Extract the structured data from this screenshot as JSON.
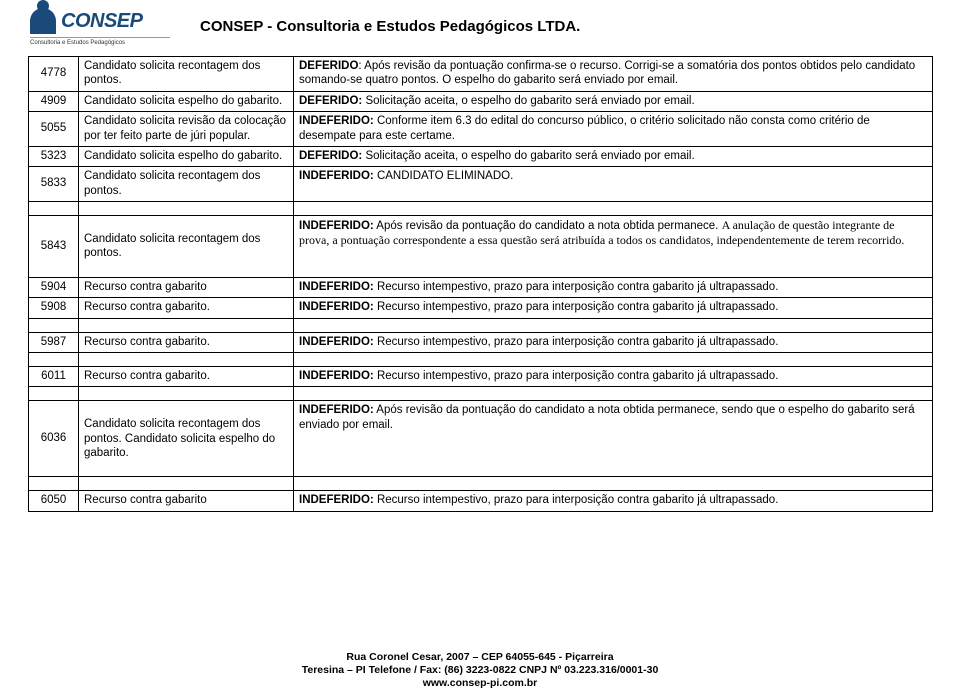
{
  "header": {
    "logo_name": "CONSEP",
    "logo_sub": "Consultoria e Estudos Pedagógicos",
    "title": "CONSEP -    Consultoria e Estudos Pedagógicos LTDA."
  },
  "rows": [
    {
      "id": "4778",
      "req": "Candidato solicita recontagem dos pontos.",
      "dec_bold": "DEFERIDO",
      "dec_rest": ": Após revisão da pontuação confirma-se o recurso. Corrigi-se a somatória dos pontos obtidos pelo candidato somando-se quatro pontos. O espelho do gabarito será enviado por email."
    },
    {
      "id": "4909",
      "req": "Candidato solicita espelho do gabarito.",
      "dec_bold": "DEFERIDO:",
      "dec_rest": " Solicitação aceita, o espelho do gabarito será enviado por email."
    },
    {
      "id": "5055",
      "req": "Candidato solicita revisão da colocação por ter feito parte de júri popular.",
      "dec_bold": "INDEFERIDO:",
      "dec_rest": " Conforme item 6.3 do edital do concurso público, o critério solicitado não consta como critério de desempate para este certame."
    },
    {
      "id": "5323",
      "req": "Candidato solicita espelho do gabarito.",
      "dec_bold": "DEFERIDO:",
      "dec_rest": " Solicitação aceita, o espelho do gabarito será enviado por email."
    },
    {
      "id": "5833",
      "req": "Candidato solicita recontagem dos pontos.",
      "dec_bold": "INDEFERIDO:",
      "dec_rest": " CANDIDATO ELIMINADO."
    },
    {
      "id": "5843",
      "req": "Candidato solicita recontagem dos pontos.",
      "dec_bold": "INDEFERIDO:",
      "dec_rest": " Após revisão da pontuação do candidato a nota obtida permanece. ",
      "dec_serif": "A anulação de questão integrante de prova, a pontuação correspondente a essa questão será atribuída a todos os candidatos, independentemente de terem recorrido."
    },
    {
      "id": "5904",
      "req": "Recurso contra gabarito",
      "dec_bold": "INDEFERIDO:",
      "dec_rest": " Recurso intempestivo, prazo para interposição contra gabarito já ultrapassado."
    },
    {
      "id": "5908",
      "req": "Recurso contra gabarito.",
      "dec_bold": "INDEFERIDO:",
      "dec_rest": " Recurso intempestivo, prazo para interposição contra gabarito já ultrapassado."
    },
    {
      "id": "5987",
      "req": "Recurso contra gabarito.",
      "dec_bold": "INDEFERIDO:",
      "dec_rest": " Recurso intempestivo, prazo para interposição contra gabarito já ultrapassado."
    },
    {
      "id": "6011",
      "req": "Recurso contra gabarito.",
      "dec_bold": "INDEFERIDO:",
      "dec_rest": " Recurso intempestivo, prazo para interposição contra gabarito já ultrapassado."
    },
    {
      "id": "6036",
      "req": "Candidato solicita recontagem dos pontos. Candidato solicita espelho do gabarito.",
      "dec_bold": "INDEFERIDO:",
      "dec_rest": " Após revisão da pontuação do candidato a nota obtida permanece, sendo que o espelho do gabarito será enviado por email."
    },
    {
      "id": "6050",
      "req": "Recurso contra gabarito",
      "dec_bold": "INDEFERIDO:",
      "dec_rest": " Recurso intempestivo, prazo para interposição contra gabarito já ultrapassado."
    }
  ],
  "footer": {
    "l1": "Rua Coronel Cesar, 2007 – CEP 64055-645 - Piçarreira",
    "l2": "Teresina – PI Telefone / Fax: (86) 3223-0822 CNPJ Nº 03.223.316/0001-30",
    "l3": "www.consep-pi.com.br"
  },
  "spacer_rows_after": {
    "5833": 1,
    "5908": 1,
    "5987": 1,
    "6011": 1,
    "6036": 1
  },
  "tall_req_rows": [
    "5843",
    "6036"
  ]
}
